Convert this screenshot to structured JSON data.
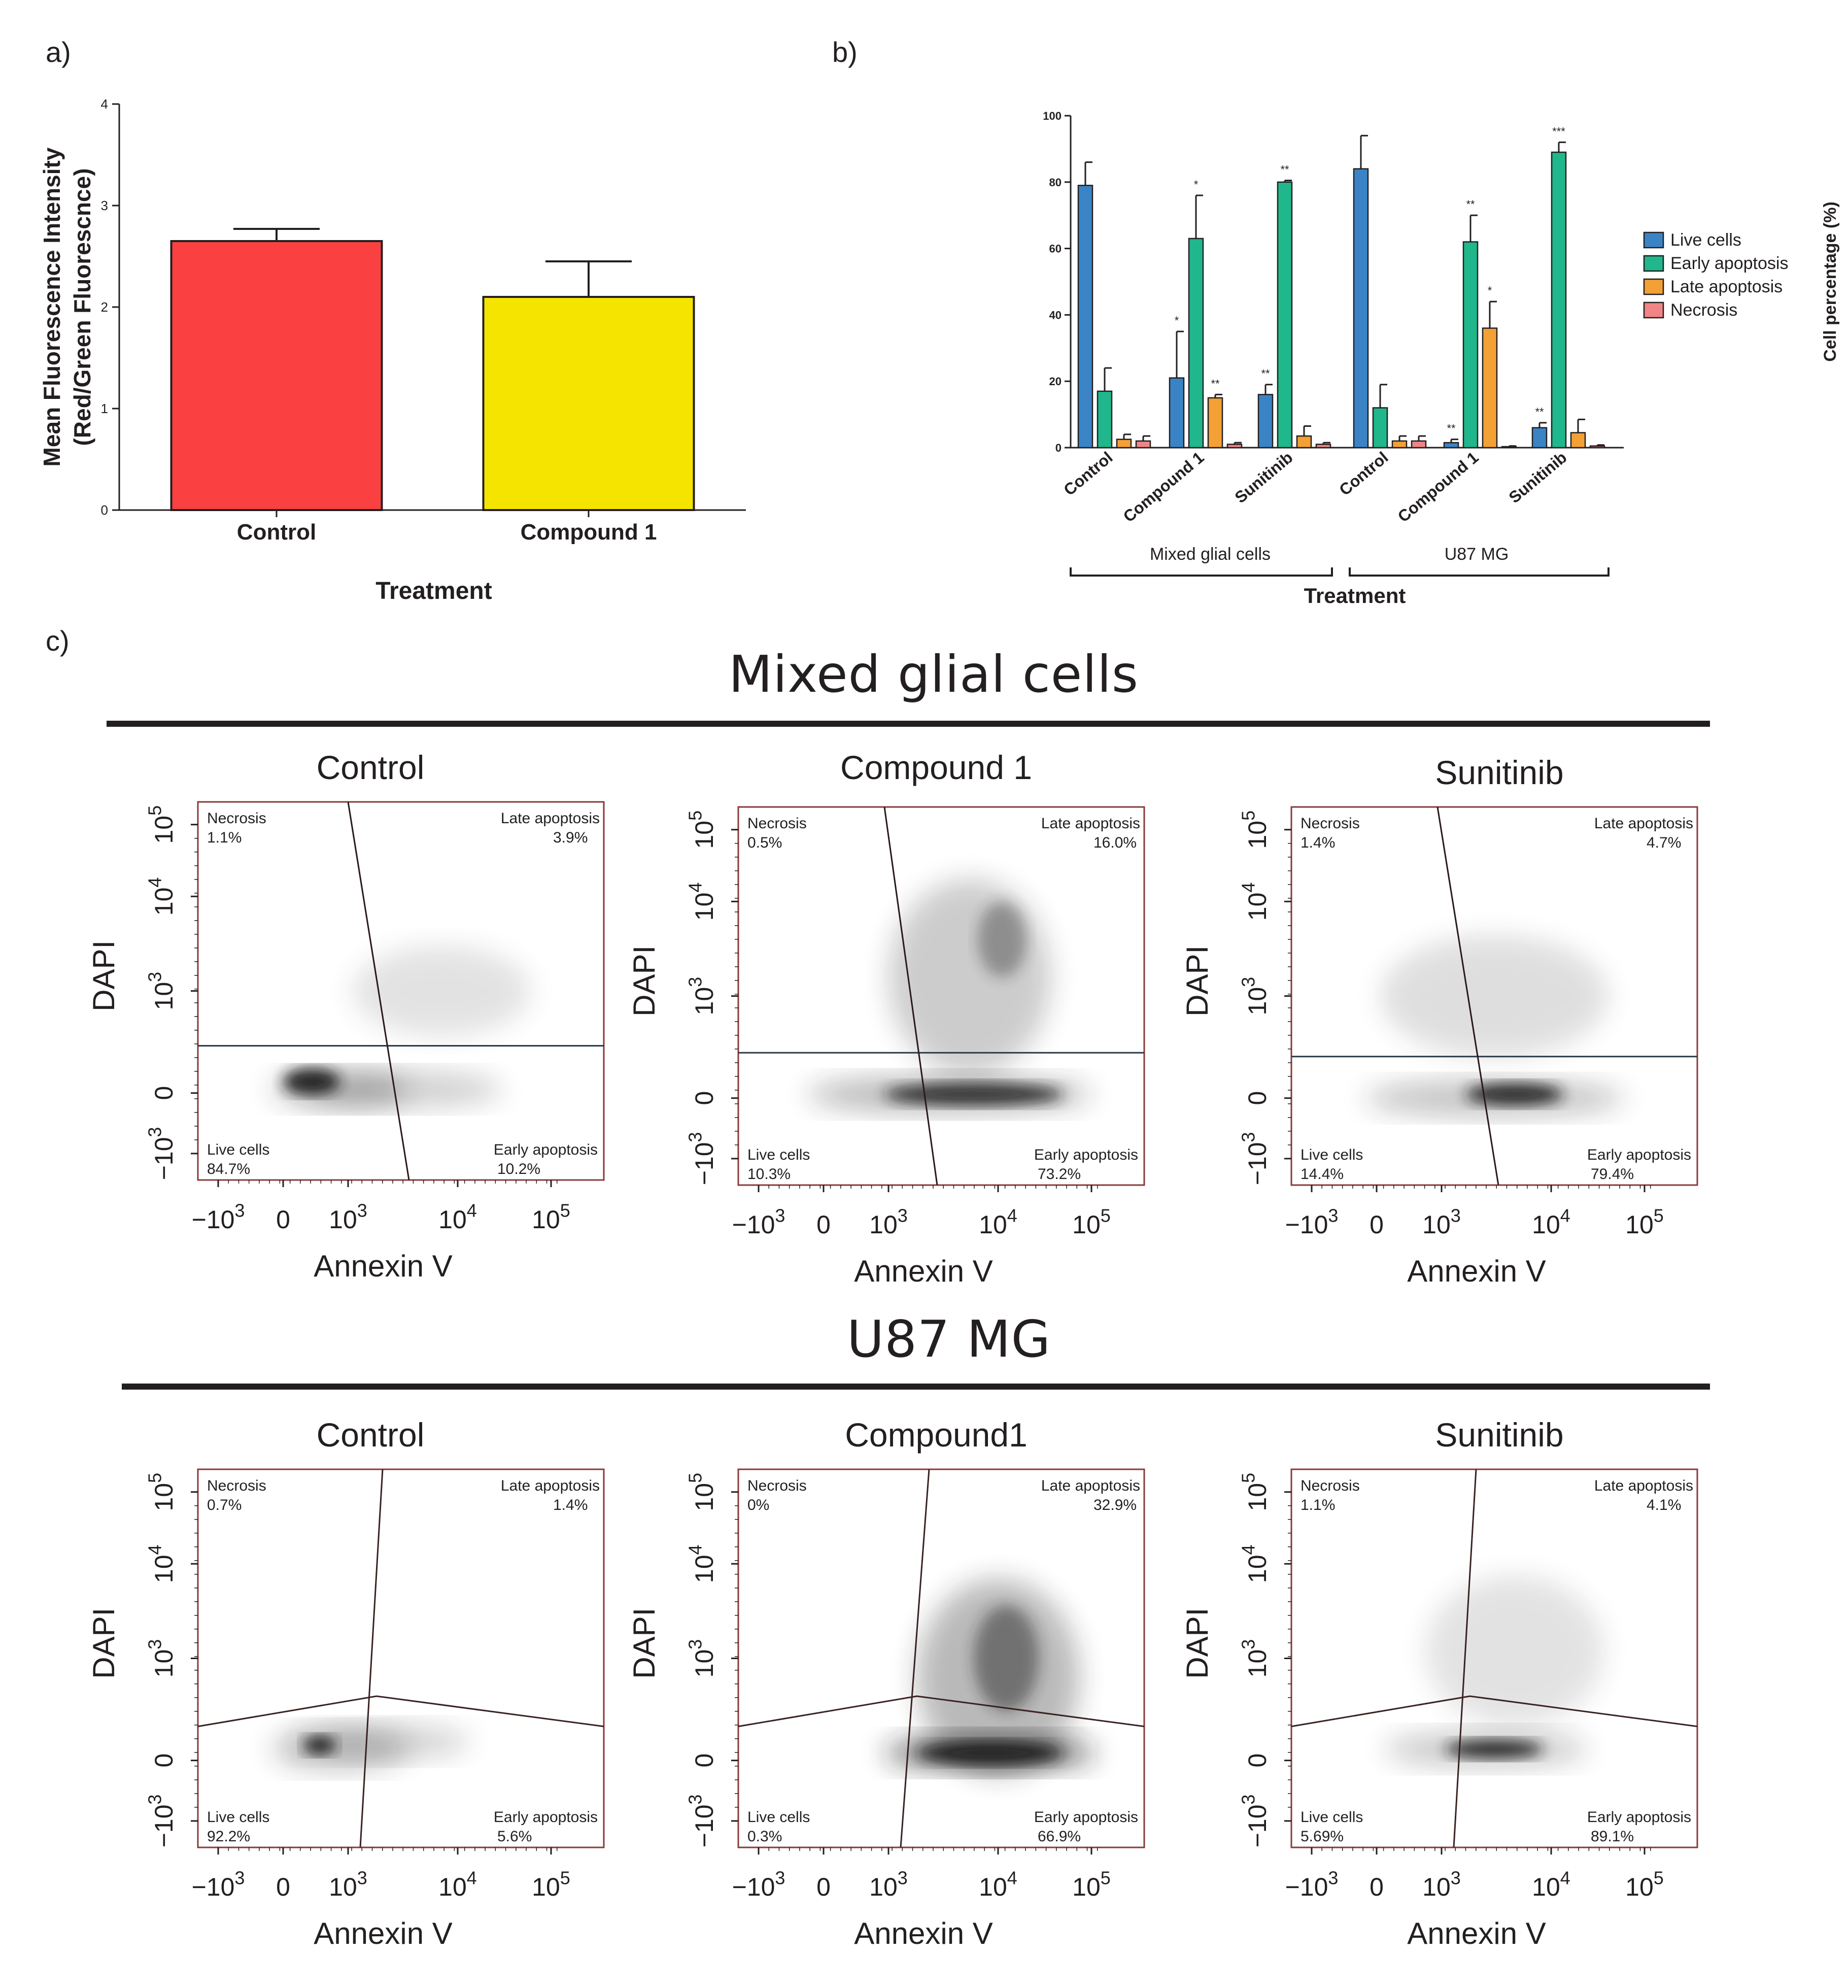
{
  "panels": {
    "a": "a)",
    "b": "b)",
    "c": "c)"
  },
  "chart_data": [
    {
      "type": "bar",
      "id": "a",
      "xlabel": "Treatment",
      "ylabel_line1": "Mean Fluorescence Intensity",
      "ylabel_line2": "(Red/Green Fluorescnce)",
      "ylim": [
        0,
        4
      ],
      "yticks": [
        "0",
        "1",
        "2",
        "3",
        "4"
      ],
      "categories": [
        "Control",
        "Compound 1"
      ],
      "values": [
        2.65,
        2.1
      ],
      "errors": [
        0.12,
        0.35
      ],
      "colors": [
        "#fa4040",
        "#f5e400"
      ]
    },
    {
      "type": "bar",
      "id": "b",
      "xlabel": "Treatment",
      "ylabel": "Cell percentage (%)",
      "ylim": [
        0,
        100
      ],
      "yticks": [
        "0",
        "20",
        "40",
        "60",
        "80",
        "100"
      ],
      "categories": [
        "Control",
        "Compound 1",
        "Sunitinib",
        "Control",
        "Compound 1",
        "Sunitinib"
      ],
      "groups": [
        "Mixed glial cells",
        "U87 MG"
      ],
      "series": [
        {
          "name": "Live cells",
          "color": "#3a84c6",
          "values": [
            79,
            21,
            16,
            84,
            1.5,
            6
          ],
          "errors": [
            7,
            14,
            3,
            10,
            1,
            1.5
          ],
          "sig": [
            "",
            "*",
            "**",
            "",
            "**",
            "**"
          ]
        },
        {
          "name": "Early apoptosis",
          "color": "#1fb78b",
          "values": [
            17,
            63,
            80,
            12,
            62,
            89
          ],
          "errors": [
            7,
            13,
            0.5,
            7,
            8,
            3
          ],
          "sig": [
            "",
            "*",
            "**",
            "",
            "**",
            "***"
          ]
        },
        {
          "name": "Late apoptosis",
          "color": "#f3a035",
          "values": [
            2.5,
            15,
            3.5,
            2,
            36,
            4.5
          ],
          "errors": [
            1.5,
            1,
            3,
            1.5,
            8,
            4
          ],
          "sig": [
            "",
            "**",
            "",
            "",
            "*",
            ""
          ]
        },
        {
          "name": "Necrosis",
          "color": "#f08585",
          "values": [
            2,
            1,
            1,
            2,
            0.3,
            0.5
          ],
          "errors": [
            1.5,
            0.5,
            0.5,
            1.5,
            0.2,
            0.3
          ],
          "sig": [
            "",
            "",
            "",
            "",
            "",
            ""
          ]
        }
      ]
    },
    {
      "type": "scatter",
      "id": "c",
      "x_axis_label": "Annexin V",
      "y_axis_label": "DAPI",
      "x_ticks": [
        "-10^3",
        "0",
        "10^3",
        "10^4",
        "10^5"
      ],
      "y_ticks": [
        "-10^3",
        "0",
        "10^3",
        "10^4",
        "10^5"
      ],
      "sections": [
        {
          "title": "Mixed glial cells",
          "plots": [
            {
              "title": "Control",
              "quadrants": {
                "necrosis": "1.1%",
                "late": "3.9%",
                "live": "84.7%",
                "early": "10.2%"
              }
            },
            {
              "title": "Compound 1",
              "quadrants": {
                "necrosis": "0.5%",
                "late": "16.0%",
                "live": "10.3%",
                "early": "73.2%"
              }
            },
            {
              "title": "Sunitinib",
              "quadrants": {
                "necrosis": "1.4%",
                "late": "4.7%",
                "live": "14.4%",
                "early": "79.4%"
              }
            }
          ]
        },
        {
          "title": "U87 MG",
          "plots": [
            {
              "title": "Control",
              "quadrants": {
                "necrosis": "0.7%",
                "late": "1.4%",
                "live": "92.2%",
                "early": "5.6%"
              }
            },
            {
              "title": "Compound1",
              "quadrants": {
                "necrosis": "0%",
                "late": "32.9%",
                "live": "0.3%",
                "early": "66.9%"
              }
            },
            {
              "title": "Sunitinib",
              "quadrants": {
                "necrosis": "1.1%",
                "late": "4.1%",
                "live": "5.69%",
                "early": "89.1%"
              }
            }
          ]
        }
      ],
      "quadrant_names": {
        "necrosis": "Necrosis",
        "late": "Late apoptosis",
        "live": "Live cells",
        "early": "Early apoptosis"
      }
    }
  ]
}
